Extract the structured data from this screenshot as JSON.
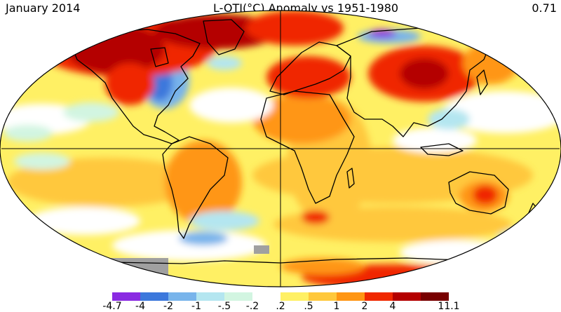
{
  "header": {
    "date": "January 2014",
    "title": "L-OTI(°C) Anomaly vs 1951-1980",
    "global_mean": "0.71"
  },
  "legend": {
    "colors": [
      "#8a2be2",
      "#3c78dc",
      "#78b4eb",
      "#b4e6f0",
      "#d2f5e1",
      "#ffffff",
      "#fff064",
      "#ffc83c",
      "#ff9614",
      "#f02800",
      "#b40000",
      "#780000"
    ],
    "tick_labels": [
      "-4.7",
      "-4",
      "-2",
      "-1",
      "-.5",
      "-.2",
      ".2",
      ".5",
      "1",
      "2",
      "4",
      "11.1"
    ]
  },
  "map": {
    "projection": "robinson",
    "no_data_color": "#a0a0a0"
  }
}
